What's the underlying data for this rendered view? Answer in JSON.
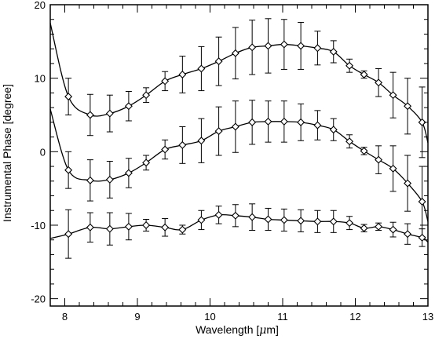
{
  "chart_data": {
    "type": "line",
    "xlabel": "Wavelength [",
    "xlabel_mu": "μ",
    "xlabel_unit": "m]",
    "ylabel": "Instrumental Phase [degree]",
    "xlim": [
      7.8,
      13.0
    ],
    "ylim": [
      -21,
      20
    ],
    "xticks": [
      "8",
      "9",
      "10",
      "11",
      "12",
      "13"
    ],
    "yticks": [
      "-20",
      "-10",
      "0",
      "10",
      "20"
    ],
    "grid": false,
    "legend": "none",
    "series": [
      {
        "points": [
          {
            "x": 8.05,
            "y": 7.5,
            "err": 2.5
          },
          {
            "x": 8.35,
            "y": 5.0,
            "err": 2.8
          },
          {
            "x": 8.62,
            "y": 5.2,
            "err": 2.5
          },
          {
            "x": 8.88,
            "y": 6.2,
            "err": 2.0
          },
          {
            "x": 9.12,
            "y": 7.7,
            "err": 1.0
          },
          {
            "x": 9.38,
            "y": 9.6,
            "err": 1.3
          },
          {
            "x": 9.62,
            "y": 10.5,
            "err": 2.5
          },
          {
            "x": 9.88,
            "y": 11.3,
            "err": 3.0
          },
          {
            "x": 10.12,
            "y": 12.3,
            "err": 3.3
          },
          {
            "x": 10.35,
            "y": 13.4,
            "err": 3.5
          },
          {
            "x": 10.58,
            "y": 14.2,
            "err": 3.7
          },
          {
            "x": 10.8,
            "y": 14.4,
            "err": 3.7
          },
          {
            "x": 11.02,
            "y": 14.6,
            "err": 3.4
          },
          {
            "x": 11.25,
            "y": 14.4,
            "err": 3.2
          },
          {
            "x": 11.48,
            "y": 14.1,
            "err": 2.3
          },
          {
            "x": 11.7,
            "y": 13.6,
            "err": 1.5
          },
          {
            "x": 11.92,
            "y": 11.7,
            "err": 0.9
          },
          {
            "x": 12.12,
            "y": 10.5,
            "err": 0.5
          },
          {
            "x": 12.32,
            "y": 9.4,
            "err": 1.9
          },
          {
            "x": 12.52,
            "y": 7.7,
            "err": 3.1
          },
          {
            "x": 12.72,
            "y": 6.2,
            "err": 3.8
          },
          {
            "x": 12.92,
            "y": 4.0,
            "err": 4.8
          }
        ]
      },
      {
        "points": [
          {
            "x": 8.05,
            "y": -2.5,
            "err": 2.5
          },
          {
            "x": 8.35,
            "y": -3.9,
            "err": 2.8
          },
          {
            "x": 8.62,
            "y": -3.8,
            "err": 2.5
          },
          {
            "x": 8.88,
            "y": -2.9,
            "err": 2.0
          },
          {
            "x": 9.12,
            "y": -1.5,
            "err": 1.0
          },
          {
            "x": 9.38,
            "y": 0.3,
            "err": 1.3
          },
          {
            "x": 9.62,
            "y": 0.9,
            "err": 2.5
          },
          {
            "x": 9.88,
            "y": 1.5,
            "err": 3.0
          },
          {
            "x": 10.12,
            "y": 2.8,
            "err": 3.3
          },
          {
            "x": 10.35,
            "y": 3.4,
            "err": 3.5
          },
          {
            "x": 10.58,
            "y": 4.0,
            "err": 3.0
          },
          {
            "x": 10.8,
            "y": 4.1,
            "err": 2.8
          },
          {
            "x": 11.02,
            "y": 4.1,
            "err": 2.8
          },
          {
            "x": 11.25,
            "y": 4.0,
            "err": 2.5
          },
          {
            "x": 11.48,
            "y": 3.6,
            "err": 2.0
          },
          {
            "x": 11.7,
            "y": 3.0,
            "err": 1.5
          },
          {
            "x": 11.92,
            "y": 1.4,
            "err": 0.9
          },
          {
            "x": 12.12,
            "y": 0.1,
            "err": 0.5
          },
          {
            "x": 12.32,
            "y": -1.1,
            "err": 1.9
          },
          {
            "x": 12.52,
            "y": -2.3,
            "err": 3.1
          },
          {
            "x": 12.72,
            "y": -4.3,
            "err": 3.8
          },
          {
            "x": 12.92,
            "y": -6.8,
            "err": 4.8
          }
        ]
      },
      {
        "points": [
          {
            "x": 8.05,
            "y": -11.2,
            "err": 3.3
          },
          {
            "x": 8.35,
            "y": -10.3,
            "err": 2.0
          },
          {
            "x": 8.62,
            "y": -10.5,
            "err": 2.2
          },
          {
            "x": 8.88,
            "y": -10.2,
            "err": 1.8
          },
          {
            "x": 9.12,
            "y": -10.0,
            "err": 0.8
          },
          {
            "x": 9.38,
            "y": -10.3,
            "err": 1.2
          },
          {
            "x": 9.62,
            "y": -10.6,
            "err": 0.6
          },
          {
            "x": 9.88,
            "y": -9.3,
            "err": 1.3
          },
          {
            "x": 10.12,
            "y": -8.6,
            "err": 1.2
          },
          {
            "x": 10.35,
            "y": -8.7,
            "err": 1.5
          },
          {
            "x": 10.58,
            "y": -8.9,
            "err": 1.8
          },
          {
            "x": 10.8,
            "y": -9.2,
            "err": 1.5
          },
          {
            "x": 11.02,
            "y": -9.3,
            "err": 1.5
          },
          {
            "x": 11.25,
            "y": -9.4,
            "err": 1.5
          },
          {
            "x": 11.48,
            "y": -9.5,
            "err": 1.5
          },
          {
            "x": 11.7,
            "y": -9.5,
            "err": 1.5
          },
          {
            "x": 11.92,
            "y": -9.7,
            "err": 0.9
          },
          {
            "x": 12.12,
            "y": -10.4,
            "err": 0.5
          },
          {
            "x": 12.32,
            "y": -10.2,
            "err": 0.5
          },
          {
            "x": 12.52,
            "y": -10.6,
            "err": 1.0
          },
          {
            "x": 12.72,
            "y": -11.2,
            "err": 1.4
          },
          {
            "x": 12.92,
            "y": -11.7,
            "err": 1.2
          }
        ]
      }
    ]
  }
}
